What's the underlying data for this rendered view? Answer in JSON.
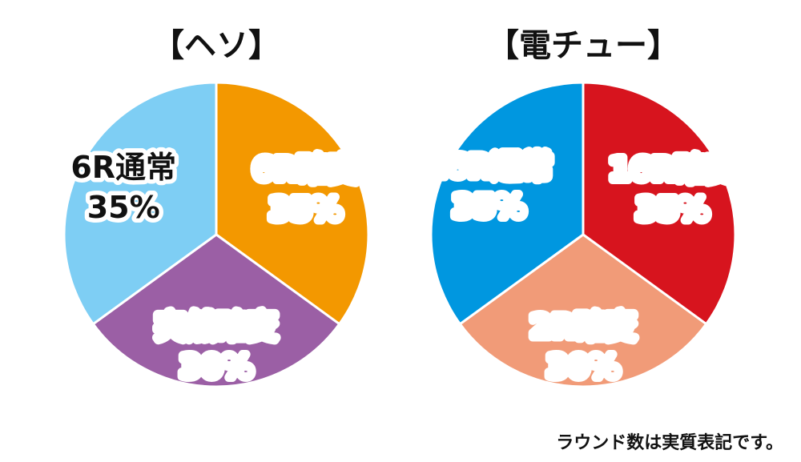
{
  "chart_data": [
    {
      "type": "pie",
      "title": "【ヘソ】",
      "slices": [
        {
          "label": "6R確変",
          "value": 35,
          "value_label": "35%",
          "color": "#f39800",
          "text_color": "#ffffff",
          "outline_color": "#f39800"
        },
        {
          "label": "突然確変",
          "value": 30,
          "value_label": "30%",
          "color": "#9b5fa5",
          "text_color": "#ffffff",
          "outline_color": "#9b5fa5"
        },
        {
          "label": "6R通常",
          "value": 35,
          "value_label": "35%",
          "color": "#7ecef4",
          "text_color": "#111111",
          "outline_color": "#7ecef4"
        }
      ]
    },
    {
      "type": "pie",
      "title": "【電チュー】",
      "slices": [
        {
          "label": "16R確変",
          "value": 35,
          "value_label": "35%",
          "color": "#d7141e",
          "text_color": "#ffffff",
          "outline_color": "#d7141e"
        },
        {
          "label": "2R確変",
          "value": 30,
          "value_label": "30%",
          "color": "#f19b78",
          "text_color": "#ffffff",
          "outline_color": "#f19b78"
        },
        {
          "label": "16R通常",
          "value": 35,
          "value_label": "35%",
          "color": "#0097e0",
          "text_color": "#ffffff",
          "outline_color": "#0097e0"
        }
      ]
    }
  ],
  "footnote": "ラウンド数は実質表記です。"
}
